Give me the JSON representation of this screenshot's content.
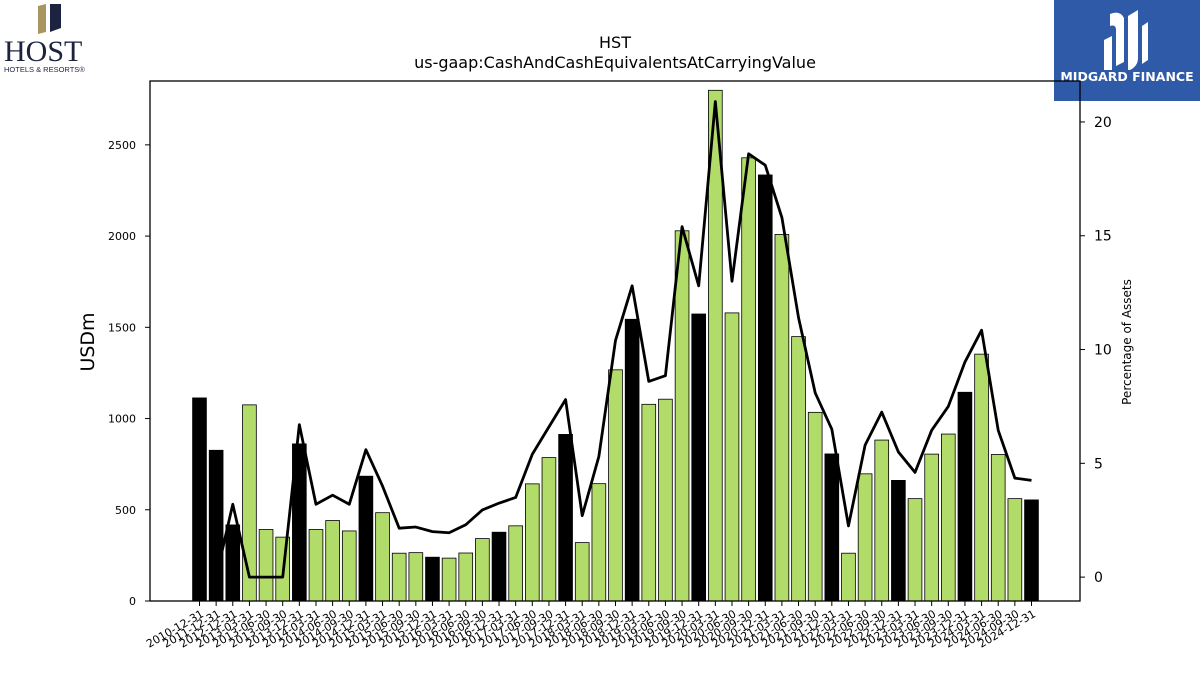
{
  "logos": {
    "left_name": "HOST",
    "left_sub": "HOTELS & RESORTS®",
    "right_name": "MIDGARD FINANCE"
  },
  "colors": {
    "bar_green": "#b2dc6a",
    "bar_black": "#000000",
    "line": "#000000",
    "brand_blue": "#2f5aa8",
    "host_gold": "#a89560",
    "host_navy": "#1c2340"
  },
  "chart_data": {
    "type": "bar",
    "title": "HST",
    "subtitle": "us-gaap:CashAndCashEquivalentsAtCarryingValue",
    "ylabel": "USDm",
    "y2label": "Percentage of Assets",
    "ylim": [
      0,
      2850
    ],
    "y2lim": [
      -1.05,
      21.8
    ],
    "yticks": [
      0,
      500,
      1000,
      1500,
      2000,
      2500
    ],
    "y2ticks": [
      0,
      5,
      10,
      15,
      20
    ],
    "categories": [
      "2010-12-31",
      "2011-12-31",
      "2012-12-31",
      "2013-03-31",
      "2013-06-30",
      "2013-09-30",
      "2013-12-31",
      "2014-03-31",
      "2014-06-30",
      "2014-09-30",
      "2014-12-31",
      "2015-03-31",
      "2015-06-30",
      "2015-09-30",
      "2015-12-31",
      "2016-03-31",
      "2016-06-30",
      "2016-09-30",
      "2016-12-31",
      "2017-03-31",
      "2017-06-30",
      "2017-09-30",
      "2017-12-31",
      "2018-03-31",
      "2018-06-30",
      "2018-09-30",
      "2018-12-31",
      "2019-03-31",
      "2019-06-30",
      "2019-09-30",
      "2019-12-31",
      "2020-03-31",
      "2020-06-30",
      "2020-09-30",
      "2020-12-31",
      "2021-03-31",
      "2021-06-30",
      "2021-09-30",
      "2021-12-31",
      "2022-03-31",
      "2022-06-30",
      "2022-09-30",
      "2022-12-31",
      "2023-03-31",
      "2023-06-30",
      "2023-09-30",
      "2023-12-31",
      "2024-03-31",
      "2024-06-30",
      "2024-09-30",
      "2024-12-31"
    ],
    "xtick_labels": [
      "2010-12-31",
      "2011-12-31",
      "2012-12-31",
      "2013-03-31",
      "2013-06-30",
      "2013-09-30",
      "2013-12-31",
      "2014-03-31",
      "2014-06-30",
      "2014-09-30",
      "2014-12-31",
      "2015-03-31",
      "2015-06-30",
      "2015-09-30",
      "2015-12-31",
      "2016-03-31",
      "2016-06-30",
      "2016-09-30",
      "2016-12-31",
      "2017-03-31",
      "2017-06-30",
      "2017-09-30",
      "2017-12-31",
      "2018-03-31",
      "2018-06-30",
      "2018-09-30",
      "2018-12-31",
      "2019-03-31",
      "2019-06-30",
      "2019-09-30",
      "2019-12-31",
      "2020-03-31",
      "2020-06-30",
      "2020-09-30",
      "2020-12-31",
      "2021-03-31",
      "2021-06-30",
      "2021-09-30",
      "2021-12-31",
      "2022-03-31",
      "2022-06-30",
      "2022-09-30",
      "2022-12-31",
      "2023-03-31",
      "2023-06-30",
      "2023-09-30",
      "2023-12-31",
      "2024-03-31",
      "2024-06-30",
      "2024-09-30",
      "2024-12-31"
    ],
    "values": [
      1113,
      826,
      417,
      1075,
      392,
      350,
      861,
      392,
      441,
      384,
      684,
      484,
      262,
      265,
      240,
      235,
      263,
      342,
      377,
      412,
      642,
      786,
      913,
      320,
      643,
      1267,
      1544,
      1078,
      1106,
      2029,
      1573,
      2799,
      1579,
      2429,
      2335,
      2009,
      1449,
      1034,
      806,
      262,
      697,
      882,
      661,
      561,
      805,
      915,
      1144,
      1353,
      803,
      561,
      554
    ],
    "year_end": [
      true,
      true,
      true,
      false,
      false,
      false,
      true,
      false,
      false,
      false,
      true,
      false,
      false,
      false,
      true,
      false,
      false,
      false,
      true,
      false,
      false,
      false,
      true,
      false,
      false,
      false,
      true,
      false,
      false,
      false,
      true,
      false,
      false,
      false,
      true,
      false,
      false,
      false,
      true,
      false,
      false,
      false,
      true,
      false,
      false,
      false,
      true,
      false,
      false,
      false,
      true
    ],
    "pct_of_assets": [
      null,
      0,
      3.2,
      0,
      0,
      0,
      6.7,
      3.2,
      3.6,
      3.2,
      5.6,
      4.0,
      2.15,
      2.2,
      2.0,
      1.95,
      2.3,
      2.95,
      3.25,
      3.5,
      5.4,
      6.6,
      7.8,
      2.7,
      5.3,
      10.4,
      12.8,
      8.6,
      8.85,
      15.4,
      12.8,
      20.9,
      13.0,
      18.6,
      18.1,
      15.8,
      11.4,
      8.1,
      6.5,
      2.25,
      5.8,
      7.25,
      5.5,
      4.6,
      6.45,
      7.5,
      9.45,
      10.85,
      6.45,
      4.35,
      4.25
    ],
    "legend": "none",
    "grid": false
  }
}
